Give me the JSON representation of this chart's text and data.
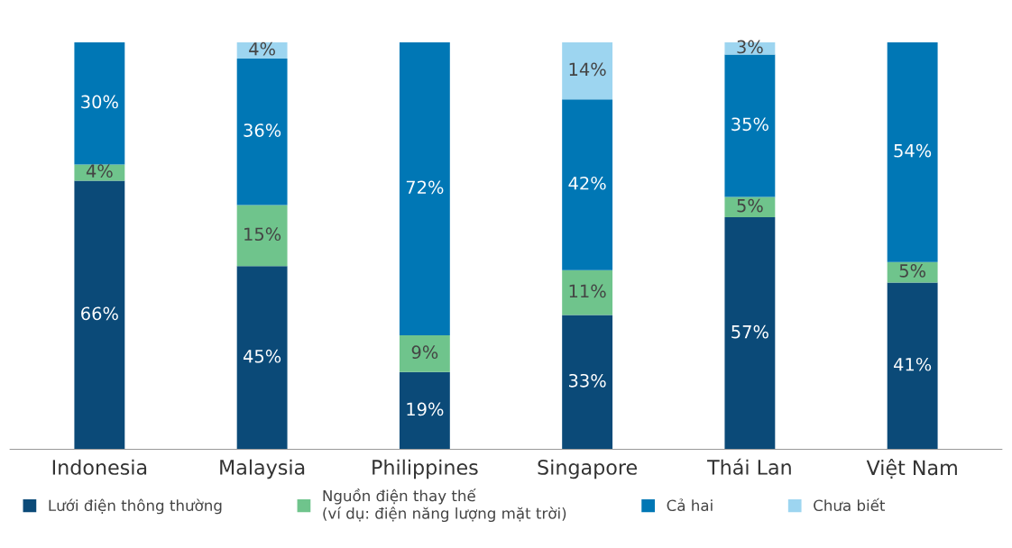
{
  "chart_data": {
    "type": "bar",
    "stacked": true,
    "legend": "bottom",
    "grid": false,
    "tick_labels": "x",
    "categories": [
      "Indonesia",
      "Malaysia",
      "Philippines",
      "Singapore",
      "Thái Lan",
      "Việt Nam"
    ],
    "series": [
      {
        "name": "Lưới điện thông thường",
        "color": "#0b4a78",
        "values": [
          66,
          45,
          19,
          33,
          57,
          41
        ],
        "value_labels": [
          "66%",
          "45%",
          "19%",
          "33%",
          "57%",
          "41%"
        ]
      },
      {
        "name": "Nguồn điện thay thế\n(ví dụ: điện năng lượng mặt trời)",
        "color": "#6fc48c",
        "values": [
          4,
          15,
          9,
          11,
          5,
          5
        ],
        "value_labels": [
          "4%",
          "15%",
          "9%",
          "11%",
          "5%",
          "5%"
        ]
      },
      {
        "name": "Cả hai",
        "color": "#0077b5",
        "values": [
          30,
          36,
          72,
          42,
          35,
          54
        ],
        "value_labels": [
          "30%",
          "36%",
          "72%",
          "42%",
          "35%",
          "54%"
        ]
      },
      {
        "name": "Chưa biết",
        "color": "#9dd5f0",
        "values": [
          null,
          4,
          null,
          14,
          3,
          null
        ],
        "value_labels": [
          null,
          "4%",
          null,
          "14%",
          "3%",
          null
        ]
      }
    ]
  }
}
